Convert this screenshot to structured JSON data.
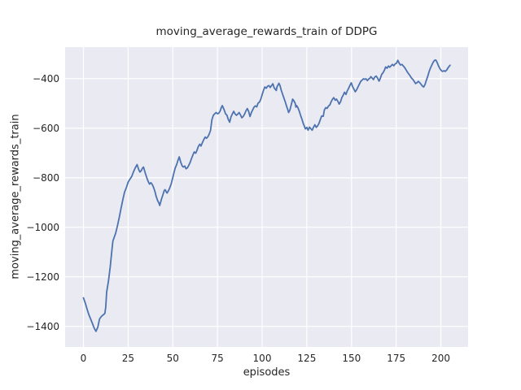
{
  "title": "moving_average_rewards_train of DDPG",
  "xlabel": "episodes",
  "ylabel": "moving_average_rewards_train",
  "colors": {
    "line": "#4C72B0",
    "plot_background": "#EAEAF2",
    "grid": "#FFFFFF",
    "text": "#262626",
    "figure_background": "#FFFFFF"
  },
  "chart_data": {
    "type": "line",
    "title": "moving_average_rewards_train of DDPG",
    "xlabel": "episodes",
    "ylabel": "moving_average_rewards_train",
    "xlim": [
      -10.25,
      215.25
    ],
    "ylim": [
      -1483,
      -273
    ],
    "xticks": [
      0,
      25,
      50,
      75,
      100,
      125,
      150,
      175,
      200
    ],
    "xtick_labels": [
      "0",
      "25",
      "50",
      "75",
      "100",
      "125",
      "150",
      "175",
      "200"
    ],
    "yticks": [
      -400,
      -600,
      -800,
      -1000,
      -1200,
      -1400
    ],
    "ytick_labels": [
      "−400",
      "−600",
      "−800",
      "−1000",
      "−1200",
      "−1400"
    ],
    "grid": true,
    "legend": false,
    "series": [
      {
        "name": "moving_average_rewards_train",
        "color": "#4C72B0",
        "points": [
          [
            0,
            -1285
          ],
          [
            0.5,
            -1295
          ],
          [
            1,
            -1305
          ],
          [
            2,
            -1330
          ],
          [
            3,
            -1352
          ],
          [
            4,
            -1370
          ],
          [
            5,
            -1388
          ],
          [
            6,
            -1407
          ],
          [
            7,
            -1420
          ],
          [
            8,
            -1404
          ],
          [
            9,
            -1370
          ],
          [
            10,
            -1360
          ],
          [
            11,
            -1354
          ],
          [
            12,
            -1348
          ],
          [
            12.5,
            -1322
          ],
          [
            13,
            -1262
          ],
          [
            14,
            -1218
          ],
          [
            15,
            -1160
          ],
          [
            16,
            -1088
          ],
          [
            16.5,
            -1055
          ],
          [
            17,
            -1045
          ],
          [
            18,
            -1025
          ],
          [
            19,
            -995
          ],
          [
            20,
            -962
          ],
          [
            21,
            -925
          ],
          [
            22,
            -890
          ],
          [
            23,
            -858
          ],
          [
            24,
            -840
          ],
          [
            25,
            -818
          ],
          [
            26,
            -806
          ],
          [
            27,
            -795
          ],
          [
            28,
            -776
          ],
          [
            29,
            -760
          ],
          [
            30,
            -747
          ],
          [
            31,
            -768
          ],
          [
            31.6,
            -777
          ],
          [
            32.4,
            -771
          ],
          [
            33,
            -762
          ],
          [
            33.6,
            -757
          ],
          [
            34.6,
            -782
          ],
          [
            35.4,
            -799
          ],
          [
            36.2,
            -815
          ],
          [
            37,
            -826
          ],
          [
            37.7,
            -820
          ],
          [
            38.4,
            -826
          ],
          [
            39.2,
            -838
          ],
          [
            40,
            -855
          ],
          [
            40.7,
            -875
          ],
          [
            41.5,
            -892
          ],
          [
            42.3,
            -904
          ],
          [
            42.7,
            -912
          ],
          [
            43.7,
            -886
          ],
          [
            44.5,
            -868
          ],
          [
            45.2,
            -852
          ],
          [
            45.7,
            -848
          ],
          [
            46.4,
            -858
          ],
          [
            46.8,
            -862
          ],
          [
            47.6,
            -852
          ],
          [
            48.3,
            -841
          ],
          [
            49.1,
            -825
          ],
          [
            49.9,
            -803
          ],
          [
            50.6,
            -781
          ],
          [
            51.4,
            -760
          ],
          [
            52.1,
            -748
          ],
          [
            52.9,
            -730
          ],
          [
            53.6,
            -716
          ],
          [
            54.4,
            -736
          ],
          [
            55.2,
            -752
          ],
          [
            55.9,
            -757
          ],
          [
            56.7,
            -753
          ],
          [
            57.4,
            -764
          ],
          [
            58.2,
            -760
          ],
          [
            59,
            -749
          ],
          [
            59.7,
            -739
          ],
          [
            60.5,
            -722
          ],
          [
            61.3,
            -707
          ],
          [
            62,
            -696
          ],
          [
            62.8,
            -701
          ],
          [
            63.5,
            -690
          ],
          [
            64.3,
            -674
          ],
          [
            65.1,
            -665
          ],
          [
            65.8,
            -672
          ],
          [
            66.6,
            -658
          ],
          [
            67.3,
            -647
          ],
          [
            68.1,
            -636
          ],
          [
            68.9,
            -641
          ],
          [
            69.6,
            -635
          ],
          [
            70.4,
            -624
          ],
          [
            71.1,
            -609
          ],
          [
            71.9,
            -566
          ],
          [
            72.7,
            -548
          ],
          [
            73.4,
            -543
          ],
          [
            74.2,
            -537
          ],
          [
            75,
            -542
          ],
          [
            75.7,
            -540
          ],
          [
            76.5,
            -531
          ],
          [
            77.2,
            -516
          ],
          [
            77.7,
            -509
          ],
          [
            78.8,
            -527
          ],
          [
            79.5,
            -542
          ],
          [
            80.3,
            -548
          ],
          [
            81,
            -564
          ],
          [
            81.8,
            -576
          ],
          [
            82.6,
            -554
          ],
          [
            83.3,
            -543
          ],
          [
            84.1,
            -532
          ],
          [
            84.8,
            -542
          ],
          [
            85.6,
            -548
          ],
          [
            86.4,
            -543
          ],
          [
            87.1,
            -537
          ],
          [
            87.9,
            -547
          ],
          [
            88.6,
            -558
          ],
          [
            89.4,
            -553
          ],
          [
            90.2,
            -543
          ],
          [
            90.9,
            -531
          ],
          [
            91.7,
            -521
          ],
          [
            92.4,
            -531
          ],
          [
            93.2,
            -553
          ],
          [
            94,
            -537
          ],
          [
            94.7,
            -526
          ],
          [
            95.5,
            -515
          ],
          [
            96.2,
            -510
          ],
          [
            97,
            -514
          ],
          [
            97.7,
            -499
          ],
          [
            98.5,
            -495
          ],
          [
            99.2,
            -484
          ],
          [
            100,
            -465
          ],
          [
            100.8,
            -446
          ],
          [
            101.5,
            -434
          ],
          [
            102.3,
            -439
          ],
          [
            103,
            -431
          ],
          [
            103.8,
            -428
          ],
          [
            104.5,
            -436
          ],
          [
            105.3,
            -428
          ],
          [
            106,
            -421
          ],
          [
            106.8,
            -438
          ],
          [
            107.6,
            -445
          ],
          [
            107.9,
            -448
          ],
          [
            108.3,
            -434
          ],
          [
            109.1,
            -423
          ],
          [
            109.4,
            -419
          ],
          [
            110,
            -428
          ],
          [
            110.6,
            -445
          ],
          [
            111.3,
            -460
          ],
          [
            112.1,
            -477
          ],
          [
            112.9,
            -493
          ],
          [
            113.6,
            -510
          ],
          [
            114.4,
            -526
          ],
          [
            114.8,
            -537
          ],
          [
            115.5,
            -528
          ],
          [
            116.2,
            -508
          ],
          [
            117.1,
            -483
          ],
          [
            117.8,
            -490
          ],
          [
            118.5,
            -500
          ],
          [
            118.9,
            -515
          ],
          [
            119.3,
            -509
          ],
          [
            120,
            -517
          ],
          [
            120.8,
            -532
          ],
          [
            121.5,
            -548
          ],
          [
            122.3,
            -565
          ],
          [
            123,
            -581
          ],
          [
            123.7,
            -593
          ],
          [
            124.2,
            -603
          ],
          [
            125,
            -597
          ],
          [
            125.7,
            -608
          ],
          [
            126.5,
            -596
          ],
          [
            127.2,
            -602
          ],
          [
            128,
            -608
          ],
          [
            128.7,
            -597
          ],
          [
            129.5,
            -586
          ],
          [
            130.3,
            -597
          ],
          [
            131,
            -591
          ],
          [
            131.8,
            -581
          ],
          [
            132.5,
            -566
          ],
          [
            133.3,
            -551
          ],
          [
            134.2,
            -552
          ],
          [
            134.8,
            -527
          ],
          [
            135.6,
            -517
          ],
          [
            136.4,
            -520
          ],
          [
            137.1,
            -511
          ],
          [
            137.9,
            -506
          ],
          [
            138.6,
            -494
          ],
          [
            139.4,
            -483
          ],
          [
            140.1,
            -477
          ],
          [
            140.9,
            -487
          ],
          [
            141.6,
            -483
          ],
          [
            142.4,
            -492
          ],
          [
            143.1,
            -503
          ],
          [
            143.9,
            -493
          ],
          [
            144.6,
            -477
          ],
          [
            145.4,
            -466
          ],
          [
            146.1,
            -455
          ],
          [
            146.9,
            -464
          ],
          [
            147.6,
            -450
          ],
          [
            148.4,
            -439
          ],
          [
            149.1,
            -428
          ],
          [
            149.9,
            -417
          ],
          [
            150.6,
            -432
          ],
          [
            151.4,
            -443
          ],
          [
            152.1,
            -453
          ],
          [
            152.9,
            -445
          ],
          [
            153.6,
            -434
          ],
          [
            154.4,
            -423
          ],
          [
            155.1,
            -412
          ],
          [
            155.9,
            -406
          ],
          [
            156.6,
            -401
          ],
          [
            157.4,
            -403
          ],
          [
            158.1,
            -401
          ],
          [
            158.9,
            -408
          ],
          [
            159.6,
            -402
          ],
          [
            160.4,
            -398
          ],
          [
            160.8,
            -392
          ],
          [
            161.6,
            -398
          ],
          [
            162.3,
            -404
          ],
          [
            163.1,
            -393
          ],
          [
            163.8,
            -390
          ],
          [
            164.6,
            -398
          ],
          [
            165.4,
            -410
          ],
          [
            166.1,
            -400
          ],
          [
            166.9,
            -383
          ],
          [
            167.6,
            -377
          ],
          [
            168.4,
            -366
          ],
          [
            169.1,
            -353
          ],
          [
            169.9,
            -358
          ],
          [
            170.7,
            -349
          ],
          [
            171.4,
            -354
          ],
          [
            172.2,
            -348
          ],
          [
            172.9,
            -343
          ],
          [
            173.7,
            -348
          ],
          [
            174.4,
            -341
          ],
          [
            175.2,
            -338
          ],
          [
            175.9,
            -326
          ],
          [
            176.7,
            -338
          ],
          [
            177.4,
            -345
          ],
          [
            178.2,
            -343
          ],
          [
            178.9,
            -348
          ],
          [
            179.7,
            -355
          ],
          [
            180.5,
            -364
          ],
          [
            181.2,
            -373
          ],
          [
            182,
            -381
          ],
          [
            182.8,
            -389
          ],
          [
            183.6,
            -398
          ],
          [
            184.3,
            -403
          ],
          [
            185.1,
            -411
          ],
          [
            185.8,
            -420
          ],
          [
            186.6,
            -417
          ],
          [
            187.4,
            -411
          ],
          [
            188.1,
            -416
          ],
          [
            188.9,
            -423
          ],
          [
            189.7,
            -430
          ],
          [
            190.4,
            -434
          ],
          [
            191.2,
            -423
          ],
          [
            191.9,
            -407
          ],
          [
            192.7,
            -390
          ],
          [
            193.4,
            -373
          ],
          [
            194.2,
            -357
          ],
          [
            195,
            -345
          ],
          [
            195.7,
            -334
          ],
          [
            196.5,
            -326
          ],
          [
            197.2,
            -325
          ],
          [
            198,
            -336
          ],
          [
            198.7,
            -349
          ],
          [
            199.5,
            -360
          ],
          [
            200.3,
            -368
          ],
          [
            201,
            -371
          ],
          [
            201.8,
            -368
          ],
          [
            202.5,
            -371
          ],
          [
            203.3,
            -365
          ],
          [
            204,
            -357
          ],
          [
            204.8,
            -349
          ],
          [
            205.2,
            -346
          ]
        ]
      }
    ]
  }
}
